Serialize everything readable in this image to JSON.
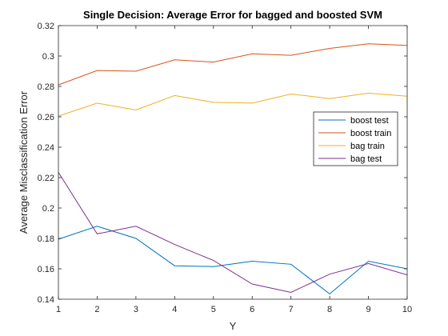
{
  "chart_data": {
    "type": "line",
    "title": "Single Decision: Average Error for bagged and boosted SVM",
    "xlabel": "Y",
    "ylabel": "Average Misclassification Error",
    "x": [
      1,
      2,
      3,
      4,
      5,
      6,
      7,
      8,
      9,
      10
    ],
    "xlim": [
      1,
      10
    ],
    "ylim": [
      0.14,
      0.32
    ],
    "xticks": [
      1,
      2,
      3,
      4,
      5,
      6,
      7,
      8,
      9,
      10
    ],
    "yticks": [
      0.14,
      0.16,
      0.18,
      0.2,
      0.22,
      0.24,
      0.26,
      0.28,
      0.3,
      0.32
    ],
    "grid": false,
    "legend_position": "right",
    "series": [
      {
        "name": "boost test",
        "color": "#0072BD",
        "values": [
          0.1795,
          0.188,
          0.18,
          0.162,
          0.1615,
          0.165,
          0.163,
          0.1435,
          0.165,
          0.16
        ]
      },
      {
        "name": "boost train",
        "color": "#D95319",
        "values": [
          0.281,
          0.2905,
          0.29,
          0.2975,
          0.296,
          0.3015,
          0.3005,
          0.305,
          0.308,
          0.307
        ]
      },
      {
        "name": "bag train",
        "color": "#EDB120",
        "values": [
          0.2605,
          0.269,
          0.2645,
          0.274,
          0.2695,
          0.269,
          0.275,
          0.272,
          0.2755,
          0.2735
        ]
      },
      {
        "name": "bag test",
        "color": "#7E2F8E",
        "values": [
          0.2235,
          0.183,
          0.188,
          0.176,
          0.1655,
          0.15,
          0.1445,
          0.1565,
          0.1635,
          0.156
        ]
      }
    ]
  }
}
